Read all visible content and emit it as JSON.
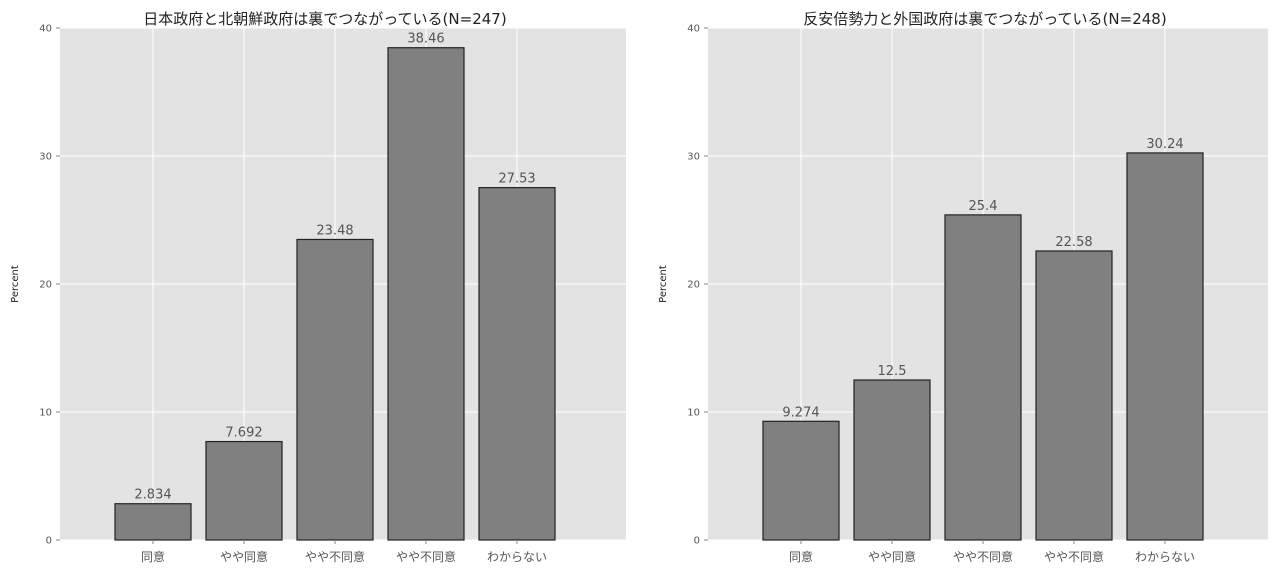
{
  "chart_data": [
    {
      "type": "bar",
      "title": "日本政府と北朝鮮政府は裏でつながっている(N=247)",
      "xlabel": "",
      "ylabel": "Percent",
      "categories": [
        "同意",
        "やや同意",
        "やや不同意",
        "やや不同意",
        "わからない"
      ],
      "values": [
        2.834,
        7.692,
        23.48,
        38.46,
        27.53
      ],
      "value_labels": [
        "2.834",
        "7.692",
        "23.48",
        "38.46",
        "27.53"
      ],
      "ylim": [
        0,
        40
      ],
      "yticks": [
        0,
        10,
        20,
        30,
        40
      ],
      "grid": true,
      "legend": "none",
      "colors": {
        "bar": "#808080",
        "bar_edge": "#222222",
        "panel": "#e3e3e3",
        "grid": "#ffffff"
      }
    },
    {
      "type": "bar",
      "title": "反安倍勢力と外国政府は裏でつながっている(N=248)",
      "xlabel": "",
      "ylabel": "Percent",
      "categories": [
        "同意",
        "やや同意",
        "やや不同意",
        "やや不同意",
        "わからない"
      ],
      "values": [
        9.274,
        12.5,
        25.4,
        22.58,
        30.24
      ],
      "value_labels": [
        "9.274",
        "12.5",
        "25.4",
        "22.58",
        "30.24"
      ],
      "ylim": [
        0,
        40
      ],
      "yticks": [
        0,
        10,
        20,
        30,
        40
      ],
      "grid": true,
      "legend": "none",
      "colors": {
        "bar": "#808080",
        "bar_edge": "#222222",
        "panel": "#e3e3e3",
        "grid": "#ffffff"
      }
    }
  ]
}
